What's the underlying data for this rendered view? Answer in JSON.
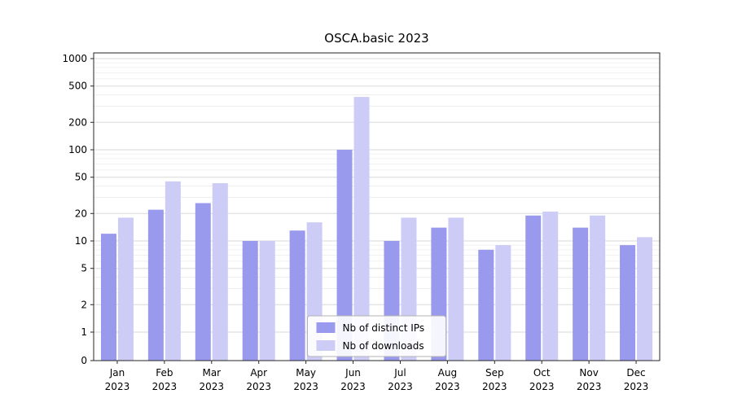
{
  "title": "OSCA.basic 2023",
  "chart_data": {
    "type": "bar",
    "title": "OSCA.basic 2023",
    "categories": [
      "Jan 2023",
      "Feb 2023",
      "Mar 2023",
      "Apr 2023",
      "May 2023",
      "Jun 2023",
      "Jul 2023",
      "Aug 2023",
      "Sep 2023",
      "Oct 2023",
      "Nov 2023",
      "Dec 2023"
    ],
    "series": [
      {
        "name": "Nb of distinct IPs",
        "color": "#9999ed",
        "values": [
          12,
          22,
          26,
          10,
          13,
          100,
          10,
          14,
          8,
          19,
          14,
          9
        ]
      },
      {
        "name": "Nb of downloads",
        "color": "#ccccf7",
        "values": [
          18,
          45,
          43,
          10,
          16,
          380,
          18,
          18,
          9,
          21,
          19,
          11
        ]
      }
    ],
    "xlabel": "",
    "ylabel": "",
    "yticks": [
      0,
      1,
      2,
      5,
      10,
      20,
      50,
      100,
      200,
      500,
      1000
    ],
    "ylim": [
      0,
      1000
    ],
    "yscale": "symlog",
    "grid": true,
    "legend": [
      "Nb of distinct IPs",
      "Nb of downloads"
    ],
    "legend_position": "lower center"
  },
  "colors": {
    "major_grid": "#d9d9d9",
    "minor_grid": "#ececec",
    "axis": "#262626",
    "legend_border": "#b3b3b3"
  }
}
